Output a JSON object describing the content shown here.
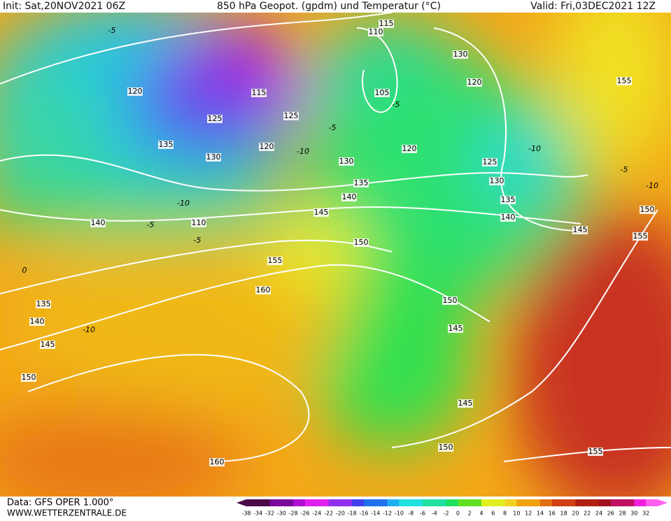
{
  "header": {
    "init": "Init: Sat,20NOV2021 06Z",
    "title": "850 hPa Geopot. (gpdm) und Temperatur (°C)",
    "valid": "Valid: Fri,03DEC2021 12Z"
  },
  "footer": {
    "data": "Data: GFS OPER 1.000°",
    "site": "WWW.WETTERZENTRALE.DE"
  },
  "colorbar": {
    "labels": [
      -38,
      -34,
      -32,
      -30,
      -28,
      -26,
      -24,
      -22,
      -20,
      -18,
      -16,
      -14,
      -12,
      -10,
      -8,
      -6,
      -4,
      -2,
      0,
      2,
      4,
      6,
      8,
      10,
      12,
      14,
      16,
      18,
      20,
      22,
      24,
      26,
      28,
      30,
      32
    ]
  },
  "map": {
    "geopotential_labels": [
      120,
      125,
      135,
      130,
      120,
      125,
      115,
      130,
      135,
      140,
      145,
      150,
      155,
      160,
      110,
      140,
      135,
      140,
      145,
      150,
      160,
      150,
      145,
      145,
      150,
      155,
      150,
      155,
      145,
      140,
      135,
      130,
      125,
      120,
      120,
      130,
      105,
      110,
      115,
      155
    ],
    "temperature_labels": [
      -5,
      -5,
      -10,
      -10,
      -5,
      -5,
      -10,
      -5,
      -10,
      -5,
      0,
      -10
    ]
  }
}
